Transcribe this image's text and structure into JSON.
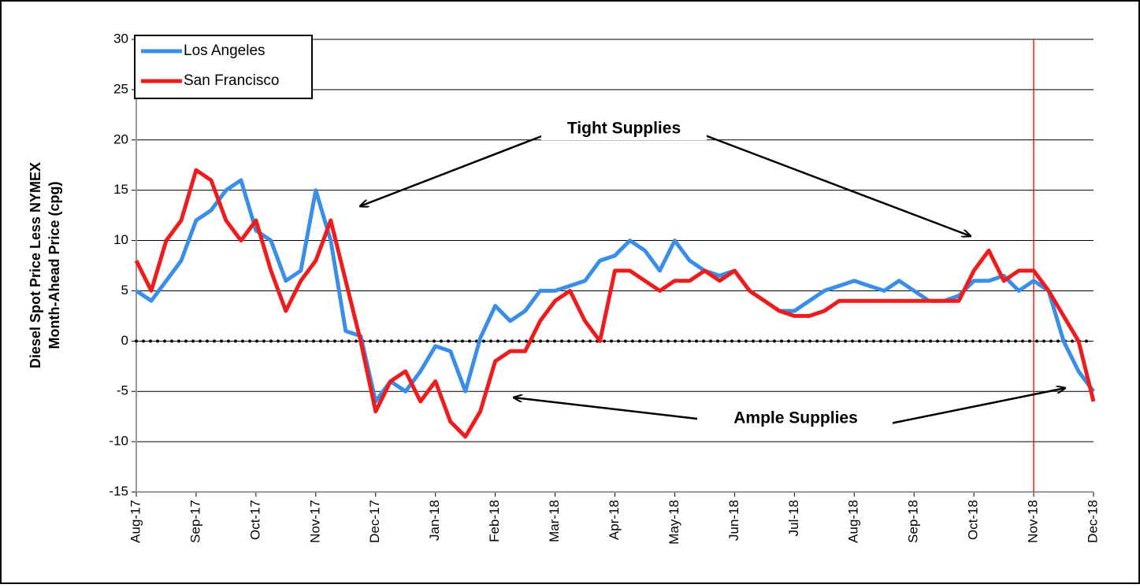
{
  "chart_data": {
    "type": "line",
    "ylabel": [
      "Diesel Spot Price Less NYMEX",
      "Month-Ahead Price (cpg)"
    ],
    "x": [
      0,
      0.25,
      0.5,
      0.75,
      1,
      1.25,
      1.5,
      1.75,
      2,
      2.25,
      2.5,
      2.75,
      3,
      3.25,
      3.5,
      3.75,
      4,
      4.25,
      4.5,
      4.75,
      5,
      5.25,
      5.5,
      5.75,
      6,
      6.25,
      6.5,
      6.75,
      7,
      7.25,
      7.5,
      7.75,
      8,
      8.25,
      8.5,
      8.75,
      9,
      9.25,
      9.5,
      9.75,
      10,
      10.25,
      10.5,
      10.75,
      11,
      11.25,
      11.5,
      11.75,
      12,
      12.25,
      12.5,
      12.75,
      13,
      13.25,
      13.5,
      13.75,
      14,
      14.25,
      14.5,
      14.75,
      15,
      15.25,
      15.5,
      15.75,
      16
    ],
    "series": [
      {
        "name": "Los Angeles",
        "color": "#3b8ee8",
        "values": [
          5,
          4,
          6,
          8,
          12,
          13,
          15,
          16,
          11,
          10,
          6,
          7,
          15,
          10,
          1,
          0.5,
          -6,
          -4,
          -5,
          -3,
          -0.5,
          -1,
          -5,
          0.3,
          3.5,
          2,
          3,
          5,
          5,
          5.5,
          6,
          8,
          8.5,
          10,
          9,
          7,
          10,
          8,
          7,
          6.5,
          7,
          5,
          4,
          3,
          3,
          4,
          5,
          5.5,
          6,
          5.5,
          5,
          6,
          5,
          4,
          4,
          4.5,
          6,
          6,
          6.5,
          5,
          6,
          5,
          0,
          -3,
          -5
        ]
      },
      {
        "name": "San Francisco",
        "color": "#ee1c1c",
        "values": [
          8,
          5,
          10,
          12,
          17,
          16,
          12,
          10,
          12,
          7,
          3,
          6,
          8,
          12,
          6,
          0,
          -7,
          -4,
          -3,
          -6,
          -4,
          -8,
          -9.5,
          -7,
          -2,
          -1,
          -1,
          2,
          4,
          5,
          2,
          0,
          7,
          7,
          6,
          5,
          6,
          6,
          7,
          6,
          7,
          5,
          4,
          3,
          2.5,
          2.5,
          3,
          4,
          4,
          4,
          4,
          4,
          4,
          4,
          4,
          4,
          7,
          9,
          6,
          7,
          7,
          5,
          2.5,
          0,
          -6
        ]
      }
    ],
    "xlim": [
      0,
      16
    ],
    "xticks": [
      {
        "value": 0,
        "label": "Aug-17"
      },
      {
        "value": 1,
        "label": "Sep-17"
      },
      {
        "value": 2,
        "label": "Oct-17"
      },
      {
        "value": 3,
        "label": "Nov-17"
      },
      {
        "value": 4,
        "label": "Dec-17"
      },
      {
        "value": 5,
        "label": "Jan-18"
      },
      {
        "value": 6,
        "label": "Feb-18"
      },
      {
        "value": 7,
        "label": "Mar-18"
      },
      {
        "value": 8,
        "label": "Apr-18"
      },
      {
        "value": 9,
        "label": "May-18"
      },
      {
        "value": 10,
        "label": "Jun-18"
      },
      {
        "value": 11,
        "label": "Jul-18"
      },
      {
        "value": 12,
        "label": "Aug-18"
      },
      {
        "value": 13,
        "label": "Sep-18"
      },
      {
        "value": 14,
        "label": "Oct-18"
      },
      {
        "value": 15,
        "label": "Nov-18"
      },
      {
        "value": 16,
        "label": "Dec-18"
      }
    ],
    "ylim": [
      -15,
      30
    ],
    "yticks": [
      -15,
      -10,
      -5,
      0,
      5,
      10,
      15,
      20,
      25,
      30
    ],
    "grid": true,
    "hlines": [
      0
    ],
    "vlines": [
      15
    ],
    "vline_color": "#ee1c1c",
    "legend": "top-left",
    "annotations": [
      "Tight Supplies",
      "Ample Supplies"
    ]
  }
}
